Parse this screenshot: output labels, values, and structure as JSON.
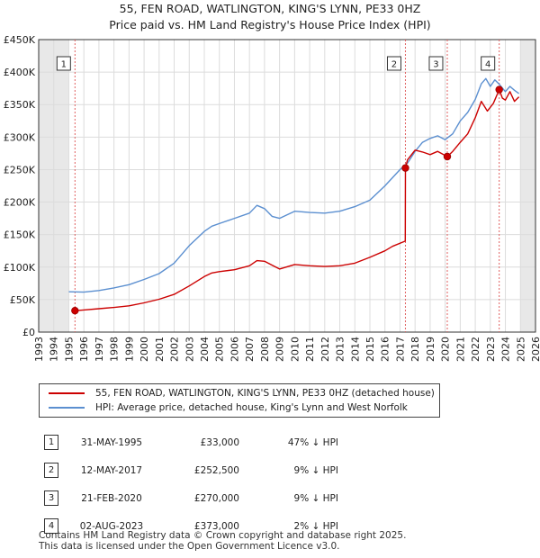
{
  "header": {
    "title_line1": "55, FEN ROAD, WATLINGTON, KING'S LYNN, PE33 0HZ",
    "title_line2": "Price paid vs. HM Land Registry's House Price Index (HPI)"
  },
  "chart_data": {
    "type": "line",
    "title": "55, FEN ROAD, WATLINGTON, KING'S LYNN, PE33 0HZ",
    "subtitle": "Price paid vs. HM Land Registry's House Price Index (HPI)",
    "xlim": [
      1993,
      2026
    ],
    "ylim": [
      0,
      450000
    ],
    "x_ticks": [
      1993,
      1994,
      1995,
      1996,
      1997,
      1998,
      1999,
      2000,
      2001,
      2002,
      2003,
      2004,
      2005,
      2006,
      2007,
      2008,
      2009,
      2010,
      2011,
      2012,
      2013,
      2014,
      2015,
      2016,
      2017,
      2018,
      2019,
      2020,
      2021,
      2022,
      2023,
      2024,
      2025,
      2026
    ],
    "y_ticks": [
      0,
      50000,
      100000,
      150000,
      200000,
      250000,
      300000,
      350000,
      400000,
      450000
    ],
    "y_tick_labels": [
      "£0",
      "£50K",
      "£100K",
      "£150K",
      "£200K",
      "£250K",
      "£300K",
      "£350K",
      "£400K",
      "£450K"
    ],
    "grid": true,
    "shaded_ranges": [
      [
        1993,
        1995.0
      ],
      [
        2025.0,
        2026
      ]
    ],
    "colors": {
      "price": "#cc0000",
      "hpi": "#5b8fd0",
      "marker_line": "#e06060",
      "shade": "#e8e8e8"
    },
    "series": [
      {
        "name": "55, FEN ROAD, WATLINGTON, KING'S LYNN, PE33 0HZ (detached house)",
        "color": "#cc0000",
        "points": [
          [
            1995.41,
            33000
          ],
          [
            1996,
            34000
          ],
          [
            1997,
            36000
          ],
          [
            1998,
            38000
          ],
          [
            1999,
            40500
          ],
          [
            2000,
            45000
          ],
          [
            2001,
            50500
          ],
          [
            2002,
            58000
          ],
          [
            2003,
            71000
          ],
          [
            2004,
            85500
          ],
          [
            2004.5,
            91000
          ],
          [
            2005,
            93000
          ],
          [
            2006,
            96000
          ],
          [
            2007,
            102000
          ],
          [
            2007.5,
            110000
          ],
          [
            2008,
            109000
          ],
          [
            2008.5,
            103000
          ],
          [
            2009,
            97000
          ],
          [
            2010,
            104000
          ],
          [
            2011,
            102000
          ],
          [
            2012,
            101000
          ],
          [
            2013,
            102000
          ],
          [
            2014,
            106000
          ],
          [
            2015,
            115000
          ],
          [
            2016,
            125000
          ],
          [
            2016.5,
            132000
          ],
          [
            2017.35,
            140000
          ],
          [
            2017.36,
            252500
          ],
          [
            2017.5,
            265000
          ],
          [
            2018,
            280000
          ],
          [
            2018.5,
            277000
          ],
          [
            2019,
            273000
          ],
          [
            2019.5,
            278000
          ],
          [
            2020.14,
            270000
          ],
          [
            2020.5,
            278000
          ],
          [
            2021,
            292000
          ],
          [
            2021.5,
            305000
          ],
          [
            2022,
            330000
          ],
          [
            2022.4,
            355000
          ],
          [
            2022.8,
            340000
          ],
          [
            2023.2,
            352000
          ],
          [
            2023.59,
            373000
          ],
          [
            2023.8,
            360000
          ],
          [
            2024,
            357000
          ],
          [
            2024.3,
            370000
          ],
          [
            2024.6,
            355000
          ],
          [
            2024.9,
            362000
          ]
        ]
      },
      {
        "name": "HPI: Average price, detached house, King's Lynn and West Norfolk",
        "color": "#5b8fd0",
        "points": [
          [
            1995,
            62000
          ],
          [
            1996,
            61500
          ],
          [
            1997,
            64000
          ],
          [
            1998,
            68000
          ],
          [
            1999,
            73000
          ],
          [
            2000,
            81000
          ],
          [
            2001,
            90000
          ],
          [
            2002,
            106000
          ],
          [
            2003,
            133000
          ],
          [
            2004,
            155000
          ],
          [
            2004.5,
            163000
          ],
          [
            2005,
            167000
          ],
          [
            2006,
            175000
          ],
          [
            2007,
            183000
          ],
          [
            2007.5,
            195000
          ],
          [
            2008,
            190000
          ],
          [
            2008.5,
            178000
          ],
          [
            2009,
            175000
          ],
          [
            2010,
            186000
          ],
          [
            2011,
            184000
          ],
          [
            2012,
            183000
          ],
          [
            2013,
            186000
          ],
          [
            2014,
            193000
          ],
          [
            2015,
            203000
          ],
          [
            2016,
            225000
          ],
          [
            2017,
            250000
          ],
          [
            2017.5,
            260000
          ],
          [
            2018,
            278000
          ],
          [
            2018.5,
            292000
          ],
          [
            2019,
            298000
          ],
          [
            2019.5,
            302000
          ],
          [
            2020,
            296000
          ],
          [
            2020.5,
            305000
          ],
          [
            2021,
            325000
          ],
          [
            2021.5,
            338000
          ],
          [
            2022,
            358000
          ],
          [
            2022.4,
            382000
          ],
          [
            2022.7,
            390000
          ],
          [
            2023,
            378000
          ],
          [
            2023.3,
            388000
          ],
          [
            2023.6,
            381000
          ],
          [
            2024,
            370000
          ],
          [
            2024.3,
            378000
          ],
          [
            2024.6,
            372000
          ],
          [
            2024.9,
            367000
          ]
        ]
      }
    ],
    "sale_markers": [
      {
        "label": "1",
        "x": 1995.41,
        "y": 33000
      },
      {
        "label": "2",
        "x": 2017.36,
        "y": 252500
      },
      {
        "label": "3",
        "x": 2020.14,
        "y": 270000
      },
      {
        "label": "4",
        "x": 2023.59,
        "y": 373000
      }
    ]
  },
  "legend": {
    "price_label": "55, FEN ROAD, WATLINGTON, KING'S LYNN, PE33 0HZ (detached house)",
    "hpi_label": "HPI: Average price, detached house, King's Lynn and West Norfolk"
  },
  "sales": [
    {
      "num": "1",
      "date": "31-MAY-1995",
      "price": "£33,000",
      "hpi": "47% ↓ HPI"
    },
    {
      "num": "2",
      "date": "12-MAY-2017",
      "price": "£252,500",
      "hpi": "9% ↓ HPI"
    },
    {
      "num": "3",
      "date": "21-FEB-2020",
      "price": "£270,000",
      "hpi": "9% ↓ HPI"
    },
    {
      "num": "4",
      "date": "02-AUG-2023",
      "price": "£373,000",
      "hpi": "2% ↓ HPI"
    }
  ],
  "footer": {
    "line1": "Contains HM Land Registry data © Crown copyright and database right 2025.",
    "line2": "This data is licensed under the Open Government Licence v3.0."
  }
}
